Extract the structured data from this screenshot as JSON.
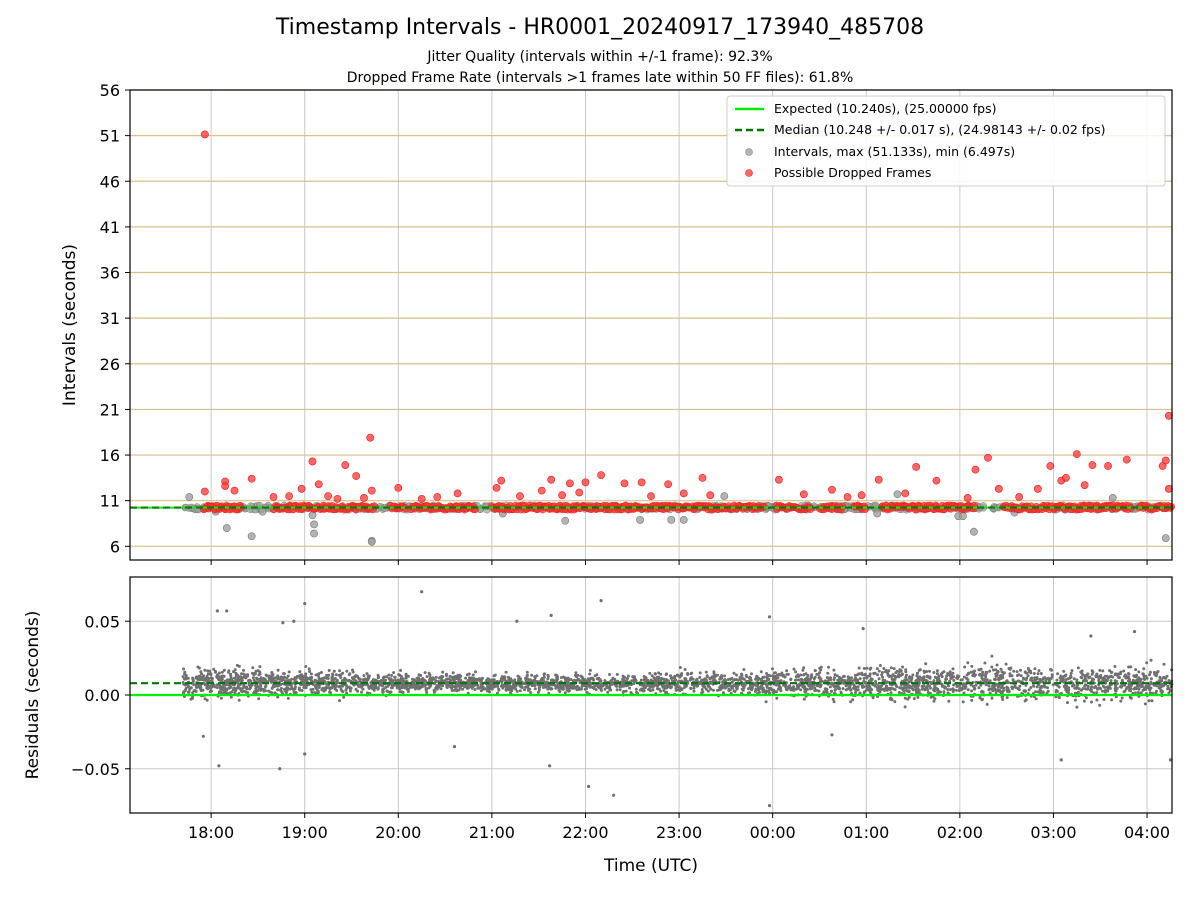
{
  "figure": {
    "title": "Timestamp Intervals - HR0001_20240917_173940_485708",
    "subtitle_1": "Jitter Quality (intervals within +/-1 frame): 92.3%",
    "subtitle_2": "Dropped Frame Rate (intervals >1 frames late within 50 FF files): 61.8%",
    "colors": {
      "expected": "#00ee00",
      "median": "#007700",
      "intervals": "#a0a0a0",
      "dropped": "#ff3333",
      "residual": "#707070",
      "grid": "#c8c8c8",
      "hgrid": "#d8c08a"
    }
  },
  "chart_data": [
    {
      "type": "scatter",
      "panel": "intervals",
      "xlabel": "",
      "ylabel": "Intervals (seconds)",
      "ylim": [
        4.5,
        56
      ],
      "yticks": [
        6,
        11,
        16,
        21,
        26,
        31,
        36,
        41,
        46,
        51,
        56
      ],
      "x_tick_labels": [
        "18:00",
        "19:00",
        "20:00",
        "21:00",
        "22:00",
        "23:00",
        "00:00",
        "01:00",
        "02:00",
        "03:00",
        "04:00"
      ],
      "xlim": [
        "17:08",
        "04:16"
      ],
      "grid": true,
      "legend_position": "top-right",
      "legend": [
        "Expected (10.240s), (25.00000 fps)",
        "Median (10.248 +/- 0.017 s), (24.98143 +/- 0.02 fps)",
        "Intervals, max (51.133s), min (6.497s)",
        "Possible Dropped Frames"
      ],
      "expected_value": 10.24,
      "median_value": 10.248,
      "dropped_frames": [
        {
          "x": "17:56",
          "y": 51.13
        },
        {
          "x": "17:56",
          "y": 12.0
        },
        {
          "x": "18:09",
          "y": 13.1
        },
        {
          "x": "18:09",
          "y": 12.6
        },
        {
          "x": "18:15",
          "y": 12.1
        },
        {
          "x": "18:26",
          "y": 13.4
        },
        {
          "x": "18:40",
          "y": 11.4
        },
        {
          "x": "18:50",
          "y": 11.5
        },
        {
          "x": "18:58",
          "y": 12.3
        },
        {
          "x": "19:05",
          "y": 15.3
        },
        {
          "x": "19:09",
          "y": 12.8
        },
        {
          "x": "19:15",
          "y": 11.5
        },
        {
          "x": "19:21",
          "y": 11.2
        },
        {
          "x": "19:26",
          "y": 14.9
        },
        {
          "x": "19:33",
          "y": 13.7
        },
        {
          "x": "19:38",
          "y": 11.3
        },
        {
          "x": "19:42",
          "y": 17.9
        },
        {
          "x": "19:43",
          "y": 12.1
        },
        {
          "x": "20:00",
          "y": 12.4
        },
        {
          "x": "20:15",
          "y": 11.2
        },
        {
          "x": "20:25",
          "y": 11.4
        },
        {
          "x": "20:38",
          "y": 11.8
        },
        {
          "x": "21:03",
          "y": 12.4
        },
        {
          "x": "21:06",
          "y": 13.2
        },
        {
          "x": "21:18",
          "y": 11.5
        },
        {
          "x": "21:32",
          "y": 12.1
        },
        {
          "x": "21:38",
          "y": 13.3
        },
        {
          "x": "21:45",
          "y": 11.6
        },
        {
          "x": "21:50",
          "y": 12.9
        },
        {
          "x": "21:56",
          "y": 11.9
        },
        {
          "x": "22:00",
          "y": 13.0
        },
        {
          "x": "22:10",
          "y": 13.8
        },
        {
          "x": "22:25",
          "y": 12.9
        },
        {
          "x": "22:36",
          "y": 13.0
        },
        {
          "x": "22:42",
          "y": 11.5
        },
        {
          "x": "22:53",
          "y": 12.8
        },
        {
          "x": "23:03",
          "y": 11.8
        },
        {
          "x": "23:15",
          "y": 13.5
        },
        {
          "x": "23:20",
          "y": 11.6
        },
        {
          "x": "00:04",
          "y": 13.3
        },
        {
          "x": "00:20",
          "y": 11.7
        },
        {
          "x": "00:38",
          "y": 12.2
        },
        {
          "x": "00:48",
          "y": 11.4
        },
        {
          "x": "00:57",
          "y": 11.6
        },
        {
          "x": "01:08",
          "y": 13.3
        },
        {
          "x": "01:25",
          "y": 11.8
        },
        {
          "x": "01:32",
          "y": 14.7
        },
        {
          "x": "01:45",
          "y": 13.2
        },
        {
          "x": "02:05",
          "y": 11.3
        },
        {
          "x": "02:10",
          "y": 14.4
        },
        {
          "x": "02:18",
          "y": 15.7
        },
        {
          "x": "02:25",
          "y": 12.3
        },
        {
          "x": "02:38",
          "y": 11.4
        },
        {
          "x": "02:50",
          "y": 12.3
        },
        {
          "x": "02:58",
          "y": 14.8
        },
        {
          "x": "03:05",
          "y": 13.2
        },
        {
          "x": "03:08",
          "y": 13.5
        },
        {
          "x": "03:15",
          "y": 16.1
        },
        {
          "x": "03:20",
          "y": 12.7
        },
        {
          "x": "03:25",
          "y": 14.9
        },
        {
          "x": "03:35",
          "y": 14.8
        },
        {
          "x": "03:47",
          "y": 15.5
        },
        {
          "x": "04:10",
          "y": 14.8
        },
        {
          "x": "04:12",
          "y": 15.4
        },
        {
          "x": "04:14",
          "y": 20.3
        },
        {
          "x": "04:14",
          "y": 12.3
        }
      ],
      "intervals": [
        {
          "x": "17:46",
          "y": 11.4
        },
        {
          "x": "18:03",
          "y": 9.8
        },
        {
          "x": "18:10",
          "y": 8.0
        },
        {
          "x": "18:26",
          "y": 7.1
        },
        {
          "x": "18:33",
          "y": 9.8
        },
        {
          "x": "19:05",
          "y": 9.4
        },
        {
          "x": "19:06",
          "y": 8.4
        },
        {
          "x": "19:06",
          "y": 7.4
        },
        {
          "x": "19:43",
          "y": 6.6
        },
        {
          "x": "19:43",
          "y": 6.5
        },
        {
          "x": "21:07",
          "y": 9.6
        },
        {
          "x": "21:47",
          "y": 8.8
        },
        {
          "x": "22:35",
          "y": 8.9
        },
        {
          "x": "22:55",
          "y": 8.9
        },
        {
          "x": "23:03",
          "y": 8.9
        },
        {
          "x": "23:29",
          "y": 11.5
        },
        {
          "x": "01:07",
          "y": 9.6
        },
        {
          "x": "01:20",
          "y": 11.7
        },
        {
          "x": "01:59",
          "y": 9.3
        },
        {
          "x": "02:02",
          "y": 9.3
        },
        {
          "x": "02:09",
          "y": 7.6
        },
        {
          "x": "02:35",
          "y": 9.7
        },
        {
          "x": "03:38",
          "y": 11.3
        },
        {
          "x": "04:12",
          "y": 6.9
        }
      ]
    },
    {
      "type": "scatter",
      "panel": "residuals",
      "xlabel": "Time (UTC)",
      "ylabel": "Residuals (seconds)",
      "ylim": [
        -0.08,
        0.08
      ],
      "yticks": [
        -0.05,
        0.0,
        0.05
      ],
      "ytick_labels": [
        "−0.05",
        "0.00",
        "0.05"
      ],
      "x_tick_labels": [
        "18:00",
        "19:00",
        "20:00",
        "21:00",
        "22:00",
        "23:00",
        "00:00",
        "01:00",
        "02:00",
        "03:00",
        "04:00"
      ],
      "xlim": [
        "17:08",
        "04:16"
      ],
      "grid": true,
      "expected_value": 0.0,
      "median_value": 0.008,
      "residual_band": {
        "typical_sd": 0.012,
        "count_estimate": 3600
      },
      "outliers": [
        {
          "x": "18:04",
          "y": 0.057
        },
        {
          "x": "18:10",
          "y": 0.057
        },
        {
          "x": "18:53",
          "y": 0.05
        },
        {
          "x": "18:46",
          "y": 0.049
        },
        {
          "x": "19:00",
          "y": 0.062
        },
        {
          "x": "20:15",
          "y": 0.07
        },
        {
          "x": "21:16",
          "y": 0.05
        },
        {
          "x": "21:38",
          "y": 0.054
        },
        {
          "x": "22:10",
          "y": 0.064
        },
        {
          "x": "23:58",
          "y": 0.053
        },
        {
          "x": "00:58",
          "y": 0.045
        },
        {
          "x": "03:24",
          "y": 0.04
        },
        {
          "x": "03:52",
          "y": 0.043
        },
        {
          "x": "18:05",
          "y": -0.048
        },
        {
          "x": "18:44",
          "y": -0.05
        },
        {
          "x": "19:00",
          "y": -0.04
        },
        {
          "x": "21:37",
          "y": -0.048
        },
        {
          "x": "22:02",
          "y": -0.062
        },
        {
          "x": "22:18",
          "y": -0.068
        },
        {
          "x": "23:58",
          "y": -0.075
        },
        {
          "x": "03:05",
          "y": -0.044
        },
        {
          "x": "04:15",
          "y": -0.044
        },
        {
          "x": "20:36",
          "y": -0.035
        },
        {
          "x": "17:55",
          "y": -0.028
        },
        {
          "x": "00:38",
          "y": -0.027
        }
      ]
    }
  ]
}
